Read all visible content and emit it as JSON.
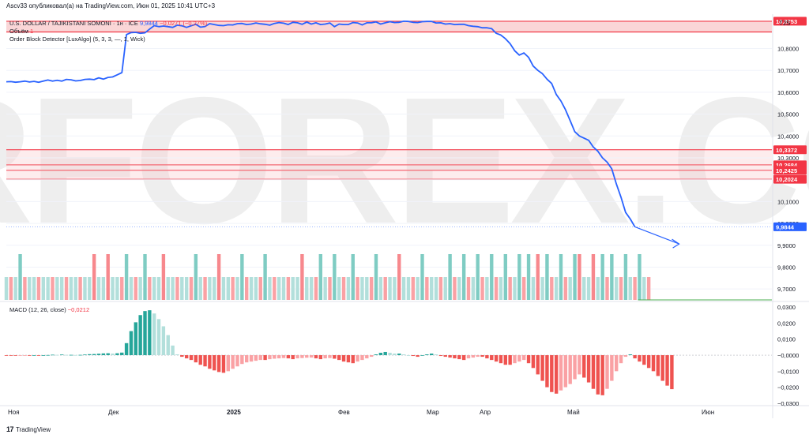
{
  "header": {
    "publisher": "Ascv33 опубликовал(а) на TradingView.com, Июн 01, 2025 10:41 UTC+3"
  },
  "legend": {
    "symbol": "U.S. DOLLAR / TAJIKISTANI SOMONI · 1н · ICE",
    "price": "9,9844",
    "change": "−0,0271 (−0,27%)",
    "volume_label": "Объём",
    "volume_value": "1",
    "indicator": "Order Block Detector [LuxAlgo] (5, 3, 3, —, 1, Wick)",
    "macd": "MACD (12, 26, close)",
    "macd_value": "−0,0212"
  },
  "currency": "TJS",
  "footer": {
    "brand": "TradingView"
  },
  "watermark": "TORFOREX.COM",
  "colors": {
    "line": "#2962ff",
    "zone_fill": "#f8c8ca",
    "zone_line": "#f23645",
    "up": "#26a69a",
    "down": "#ef5350",
    "up_light": "#b2dfdb",
    "down_light": "#faa1a4",
    "last": "#2962ff"
  },
  "chart_data": [
    {
      "type": "line",
      "ylim": [
        9.65,
        10.95
      ],
      "price_ticks": [
        "10,8000",
        "10,7000",
        "10,6000",
        "10,5000",
        "10,4000",
        "10,3000",
        "10,2000",
        "10,1000",
        "10,0000",
        "9,9000",
        "9,8000",
        "9,7000"
      ],
      "x_labels": [
        "Ноя",
        "Дек",
        "2025",
        "Фев",
        "Мар",
        "Апр",
        "Май",
        "Июн"
      ],
      "series": [
        {
          "values": [
            10.648,
            10.649,
            10.646,
            10.648,
            10.651,
            10.647,
            10.65,
            10.646,
            10.651,
            10.656,
            10.651,
            10.655,
            10.651,
            10.659,
            10.657,
            10.652,
            10.654,
            10.659,
            10.66,
            10.658,
            10.666,
            10.66,
            10.668,
            10.67,
            10.68,
            10.69,
            10.864,
            10.873,
            10.874,
            10.87,
            10.872,
            10.889,
            10.905,
            10.9,
            10.903,
            10.9,
            10.897,
            10.907,
            10.904,
            10.897,
            10.904,
            10.911,
            10.898,
            10.901,
            10.914,
            10.91,
            10.906,
            10.905,
            10.909,
            10.908,
            10.914,
            10.915,
            10.91,
            10.912,
            10.917,
            10.913,
            10.911,
            10.907,
            10.915,
            10.919,
            10.916,
            10.91,
            10.92,
            10.918,
            10.911,
            10.921,
            10.912,
            10.918,
            10.91,
            10.912,
            10.917,
            10.9,
            10.912,
            10.91,
            10.91,
            10.919,
            10.917,
            10.908,
            10.918,
            10.918,
            10.922,
            10.912,
            10.918,
            10.923,
            10.919,
            10.92,
            10.925,
            10.924,
            10.92,
            10.919,
            10.923,
            10.924,
            10.924,
            10.917,
            10.918,
            10.912,
            10.914,
            10.91,
            10.911,
            10.911,
            10.905,
            10.902,
            10.9,
            10.895,
            10.895,
            10.891,
            10.87,
            10.862,
            10.845,
            10.823,
            10.79,
            10.77,
            10.78,
            10.76,
            10.72,
            10.7,
            10.685,
            10.66,
            10.64,
            10.59,
            10.56,
            10.52,
            10.47,
            10.42,
            10.4,
            10.39,
            10.38,
            10.35,
            10.33,
            10.3,
            10.28,
            10.25,
            10.18,
            10.12,
            10.05,
            10.02,
            9.9844
          ]
        }
      ],
      "forecast": [
        9.9844,
        9.906
      ],
      "order_blocks": [
        {
          "top": 10.925,
          "bottom": 10.876,
          "label": "10,8753"
        },
        {
          "top": 10.337,
          "bottom": 10.337,
          "label": "10,3372"
        },
        {
          "top": 10.268,
          "bottom": 10.268,
          "label": "10,2684"
        },
        {
          "top": 10.243,
          "bottom": 10.243,
          "label": "10,2425"
        },
        {
          "top": 10.202,
          "bottom": 10.202,
          "label": "10,2024"
        }
      ],
      "last_price_label": "9,9844"
    },
    {
      "type": "bar",
      "name": "volume",
      "values": [
        1,
        1,
        1,
        2,
        1,
        1,
        1,
        1,
        1,
        1,
        1,
        1,
        1,
        1,
        1,
        1,
        1,
        1,
        1,
        2,
        1,
        1,
        2,
        1,
        1,
        1,
        2,
        1,
        1,
        1,
        2,
        1,
        1,
        1,
        2,
        1,
        1,
        1,
        1,
        1,
        1,
        2,
        1,
        1,
        1,
        1,
        2,
        1,
        1,
        1,
        1,
        2,
        1,
        1,
        1,
        1,
        2,
        1,
        1,
        1,
        1,
        1,
        1,
        1,
        2,
        1,
        1,
        1,
        2,
        1,
        1,
        2,
        1,
        1,
        1,
        2,
        1,
        1,
        1,
        1,
        2,
        1,
        1,
        1,
        1,
        2,
        1,
        1,
        1,
        1,
        2,
        1,
        1,
        1,
        1,
        1,
        2,
        1,
        1,
        2,
        1,
        1,
        2,
        1,
        1,
        2,
        1,
        1,
        2,
        1,
        1,
        2,
        1,
        2,
        1,
        2,
        1,
        2,
        1,
        1,
        2,
        1,
        1,
        2,
        2,
        1,
        1,
        2,
        1,
        2,
        1,
        2,
        1,
        1,
        2,
        1,
        1,
        2,
        1,
        1
      ],
      "ylim": [
        0,
        2
      ]
    },
    {
      "type": "bar",
      "name": "MACD (12, 26, close)",
      "ylim": [
        -0.0305,
        0.0325
      ],
      "ticks": [
        "0,0300",
        "0,0200",
        "0,0100",
        "−0,0000",
        "−0,0100",
        "−0,0200",
        "−0,0300"
      ],
      "values": [
        -0.0002,
        -0.0002,
        -0.0003,
        -0.0002,
        -0.0001,
        -0.0001,
        0.0,
        -0.0001,
        0.0,
        0.0001,
        0.0003,
        0.0002,
        0.0004,
        0.0002,
        0.0002,
        0.0001,
        0.0002,
        0.0004,
        0.0006,
        0.0007,
        0.0009,
        0.0011,
        0.0012,
        0.001,
        0.0012,
        0.0016,
        0.0075,
        0.015,
        0.0205,
        0.025,
        0.0275,
        0.028,
        0.026,
        0.0225,
        0.018,
        0.0125,
        0.006,
        0.0005,
        -0.001,
        -0.002,
        -0.003,
        -0.0045,
        -0.006,
        -0.007,
        -0.0085,
        -0.0095,
        -0.0105,
        -0.011,
        -0.01,
        -0.0085,
        -0.007,
        -0.0055,
        -0.0045,
        -0.004,
        -0.0035,
        -0.003,
        -0.003,
        -0.0025,
        -0.0022,
        -0.002,
        -0.0018,
        -0.002,
        -0.0025,
        -0.002,
        -0.0018,
        -0.0016,
        -0.0015,
        -0.002,
        -0.0025,
        -0.002,
        -0.0018,
        -0.0022,
        -0.003,
        -0.004,
        -0.0045,
        -0.005,
        -0.004,
        -0.003,
        -0.002,
        -0.001,
        0.0005,
        0.0015,
        0.002,
        0.0015,
        0.001,
        0.001,
        0.0005,
        0.0,
        -0.0005,
        -0.001,
        0.0,
        0.0005,
        0.001,
        0.0005,
        -0.0005,
        -0.001,
        -0.0015,
        -0.002,
        -0.0025,
        -0.003,
        -0.002,
        -0.0015,
        -0.001,
        -0.001,
        -0.002,
        -0.003,
        -0.004,
        -0.005,
        -0.006,
        -0.006,
        -0.005,
        -0.004,
        -0.003,
        -0.005,
        -0.008,
        -0.012,
        -0.016,
        -0.02,
        -0.023,
        -0.024,
        -0.022,
        -0.02,
        -0.018,
        -0.015,
        -0.012,
        -0.014,
        -0.017,
        -0.021,
        -0.0245,
        -0.025,
        -0.021,
        -0.016,
        -0.01,
        -0.005,
        -0.001,
        0.0005,
        -0.002,
        -0.004,
        -0.006,
        -0.008,
        -0.01,
        -0.013,
        -0.016,
        -0.019,
        -0.0212
      ]
    }
  ]
}
